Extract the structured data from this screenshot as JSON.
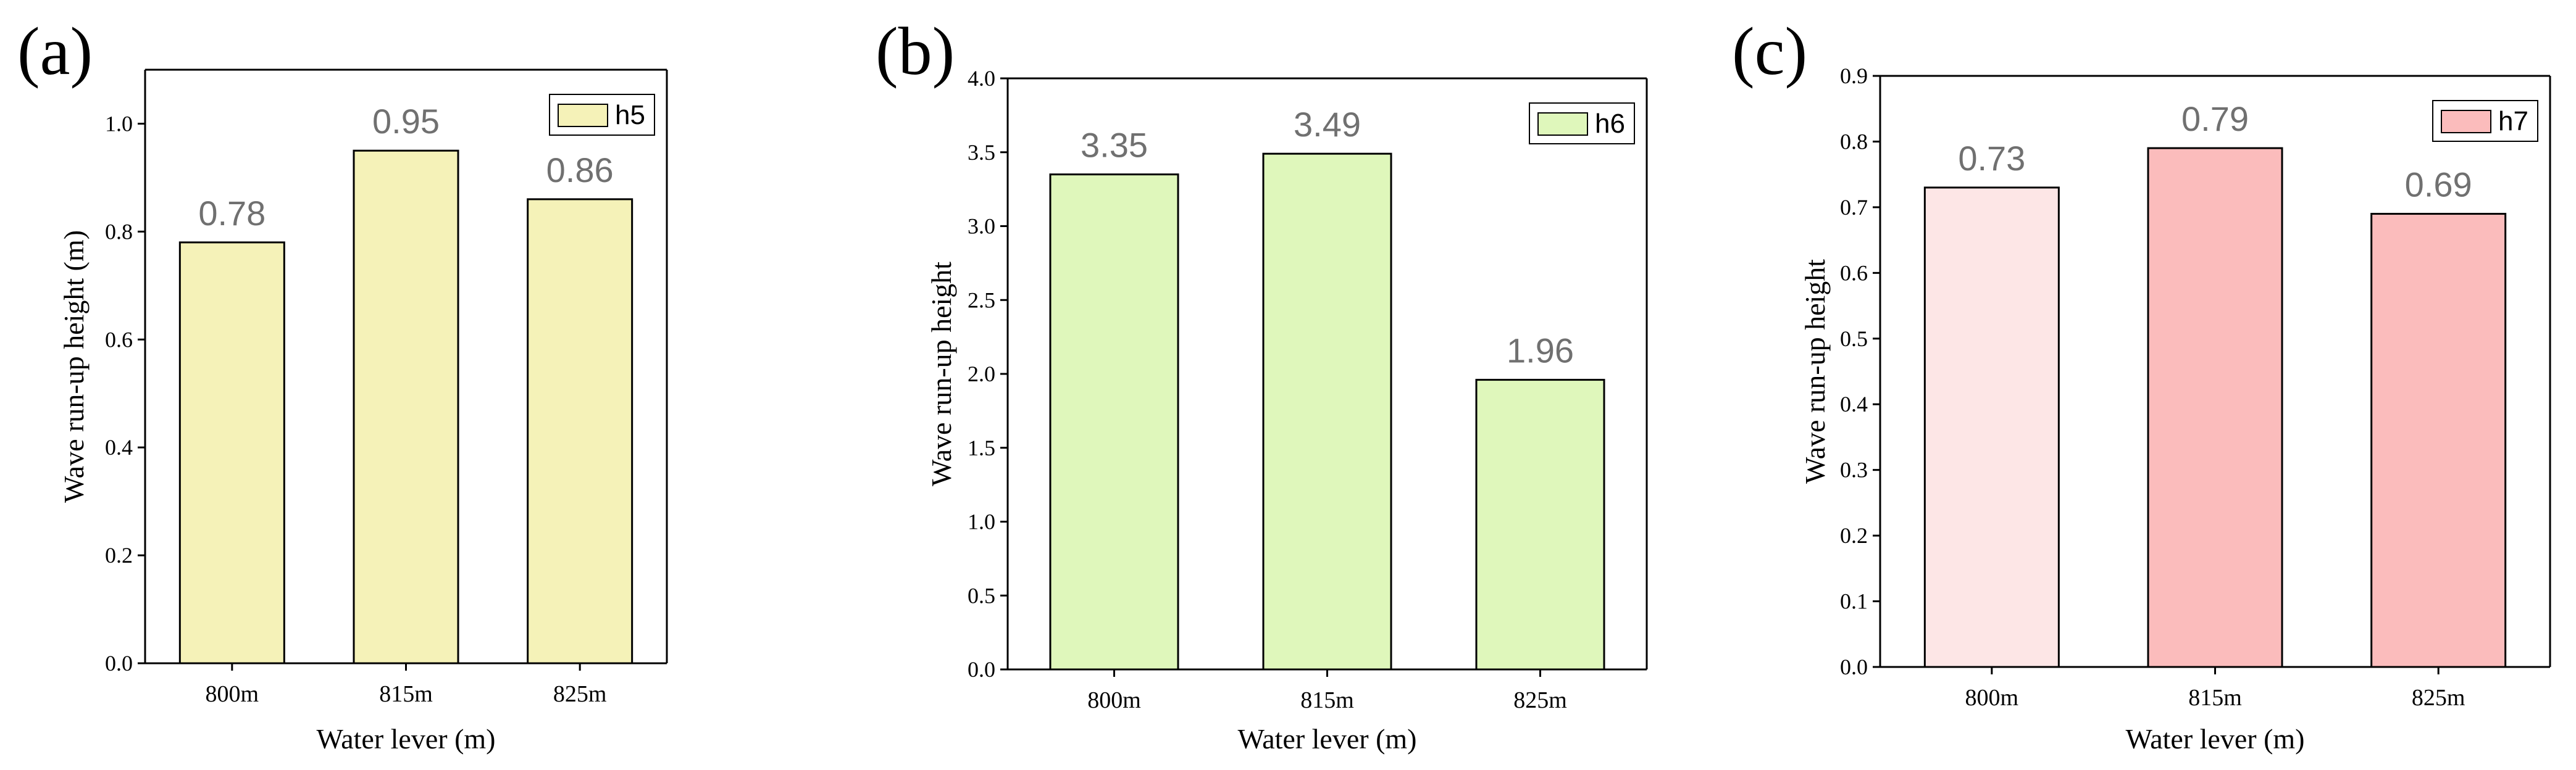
{
  "chart_data": [
    {
      "type": "bar",
      "panel": "(a)",
      "categories": [
        "800m",
        "815m",
        "825m"
      ],
      "series": [
        {
          "name": "h5",
          "values": [
            0.78,
            0.95,
            0.86
          ]
        }
      ],
      "data_labels": [
        "0.78",
        "0.95",
        "0.86"
      ],
      "yticks": [
        "0.0",
        "0.2",
        "0.4",
        "0.6",
        "0.8",
        "1.0"
      ],
      "ylim": [
        0,
        1.1
      ],
      "xlabel": "Water lever (m)",
      "ylabel": "Wave run-up height (m)",
      "legend": "h5",
      "legend_position": "top-right",
      "color": "#f5f2b8",
      "grid": false
    },
    {
      "type": "bar",
      "panel": "(b)",
      "categories": [
        "800m",
        "815m",
        "825m"
      ],
      "series": [
        {
          "name": "h6",
          "values": [
            3.35,
            3.49,
            1.96
          ]
        }
      ],
      "data_labels": [
        "3.35",
        "3.49",
        "1.96"
      ],
      "yticks": [
        "0.0",
        "0.5",
        "1.0",
        "1.5",
        "2.0",
        "2.5",
        "3.0",
        "3.5",
        "4.0"
      ],
      "ylim": [
        0,
        4.0
      ],
      "xlabel": "Water lever (m)",
      "ylabel": "Wave run-up height",
      "legend": "h6",
      "legend_position": "top-right",
      "color": "#dff7bb",
      "grid": false
    },
    {
      "type": "bar",
      "panel": "(c)",
      "categories": [
        "800m",
        "815m",
        "825m"
      ],
      "series": [
        {
          "name": "h7",
          "values": [
            0.73,
            0.79,
            0.69
          ]
        }
      ],
      "data_labels": [
        "0.73",
        "0.79",
        "0.69"
      ],
      "yticks": [
        "0.0",
        "0.1",
        "0.2",
        "0.3",
        "0.4",
        "0.5",
        "0.6",
        "0.7",
        "0.8",
        "0.9"
      ],
      "ylim": [
        0,
        0.9
      ],
      "xlabel": "Water lever (m)",
      "ylabel": "Wave run-up height",
      "legend": "h7",
      "legend_position": "top-right",
      "colors": [
        "#fde6e6",
        "#fbbcbc",
        "#fbbcbc"
      ],
      "grid": false
    }
  ]
}
